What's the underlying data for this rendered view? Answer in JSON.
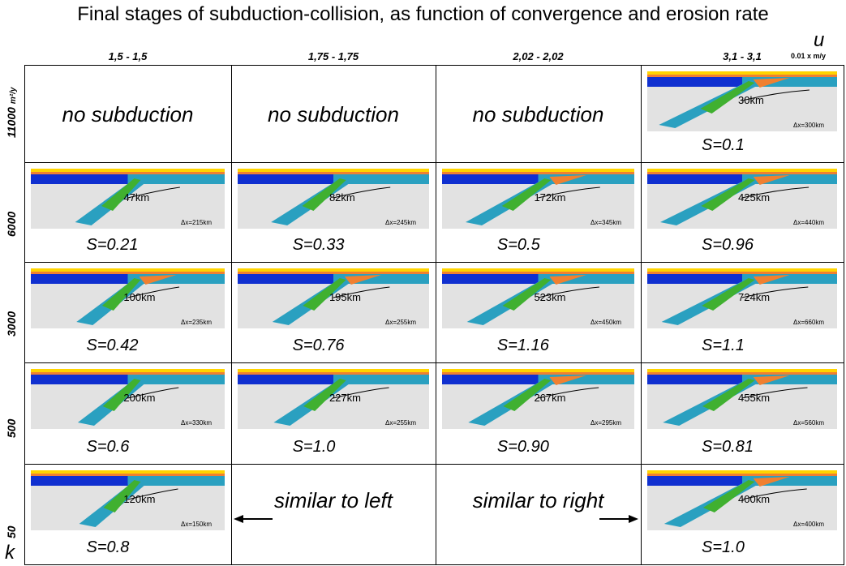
{
  "title": "Final stages of subduction-collision, as function of convergence and erosion rate",
  "u_label": "u",
  "u_unit": "0.01 x m/y",
  "columns": [
    "1,5 - 1,5",
    "1,75 - 1,75",
    "2,02 - 2,02",
    "3,1 - 3,1"
  ],
  "k_label": "k",
  "k_unit": "m²/y",
  "rows": [
    {
      "label": "11000",
      "cells": [
        {
          "text": "no subduction"
        },
        {
          "text": "no subduction"
        },
        {
          "text": "no subduction"
        },
        {
          "distance": "30km",
          "s": "S=0.1",
          "dx": "Δx=300km"
        }
      ]
    },
    {
      "label": "6000",
      "cells": [
        {
          "distance": "47km",
          "s": "S=0.21",
          "dx": "Δx=215km"
        },
        {
          "distance": "82km",
          "s": "S=0.33",
          "dx": "Δx=245km"
        },
        {
          "distance": "172km",
          "s": "S=0.5",
          "dx": "Δx=345km"
        },
        {
          "distance": "425km",
          "s": "S=0.96",
          "dx": "Δx=440km"
        }
      ]
    },
    {
      "label": "3000",
      "cells": [
        {
          "distance": "100km",
          "s": "S=0.42",
          "dx": "Δx=235km"
        },
        {
          "distance": "195km",
          "s": "S=0.76",
          "dx": "Δx=255km"
        },
        {
          "distance": "523km",
          "s": "S=1.16",
          "dx": "Δx=450km"
        },
        {
          "distance": "724km",
          "s": "S=1.1",
          "dx": "Δx=660km"
        }
      ]
    },
    {
      "label": "500",
      "cells": [
        {
          "distance": "200km",
          "s": "S=0.6",
          "dx": "Δx=330km"
        },
        {
          "distance": "227km",
          "s": "S=1.0",
          "dx": "Δx=255km"
        },
        {
          "distance": "267km",
          "s": "S=0.90",
          "dx": "Δx=295km"
        },
        {
          "distance": "455km",
          "s": "S=0.81",
          "dx": "Δx=560km"
        }
      ]
    },
    {
      "label": "50",
      "cells": [
        {
          "distance": "120km",
          "s": "S=0.8",
          "dx": "Δx=150km"
        },
        {
          "text": "similar to left",
          "arrow": "left"
        },
        {
          "text": "similar to right",
          "arrow": "right"
        },
        {
          "distance": "400km",
          "s": "S=1.0",
          "dx": "Δx=400km"
        }
      ]
    }
  ]
}
